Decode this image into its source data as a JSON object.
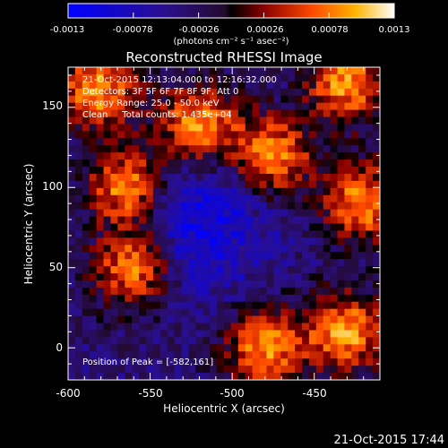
{
  "chart_data": {
    "type": "heatmap",
    "title": "Reconstructed RHESSI Image",
    "xlabel": "Heliocentric X (arcsec)",
    "ylabel": "Heliocentric Y (arcsec)",
    "xlim": [
      -600,
      -410
    ],
    "ylim": [
      -20,
      175
    ],
    "xticks": [
      "-600",
      "-550",
      "-500",
      "-450"
    ],
    "xtick_values": [
      -600,
      -550,
      -500,
      -450
    ],
    "yticks": [
      "0",
      "50",
      "100",
      "150"
    ],
    "ytick_values": [
      0,
      50,
      100,
      150
    ],
    "colorbar": {
      "min": -0.0013,
      "max": 0.0013,
      "tick_labels": [
        "-0.0013",
        "-0.00078",
        "-0.00026",
        "0.00026",
        "0.00078",
        "0.0013"
      ],
      "tick_values": [
        -0.0013,
        -0.00078,
        -0.00026,
        0.00026,
        0.00078,
        0.0013
      ],
      "unit_label": "(photons cm⁻² s⁻¹ asec⁻²)"
    },
    "annotations": [
      "21-Oct-2015 12:13:04.000 to 12:16:32.000",
      "Detectors: 3F 5F 6F 7F 8F 9F, Att 0",
      "Energy Range: 25.0 - 50.0 keV",
      "Clean     Total counts: 1.435e+04"
    ],
    "peak_label": "Position of Peak = [-582,161]",
    "peak": [
      -582,
      161
    ],
    "bright_sources": [
      {
        "x": -582,
        "y": 161
      },
      {
        "x": -565,
        "y": 100
      },
      {
        "x": -520,
        "y": 140
      },
      {
        "x": -475,
        "y": 120
      },
      {
        "x": -560,
        "y": 50
      },
      {
        "x": -430,
        "y": 165
      },
      {
        "x": -420,
        "y": 90
      },
      {
        "x": -430,
        "y": 10
      },
      {
        "x": -480,
        "y": 0
      }
    ],
    "footer_timestamp": "21-Oct-2015 17:44"
  }
}
